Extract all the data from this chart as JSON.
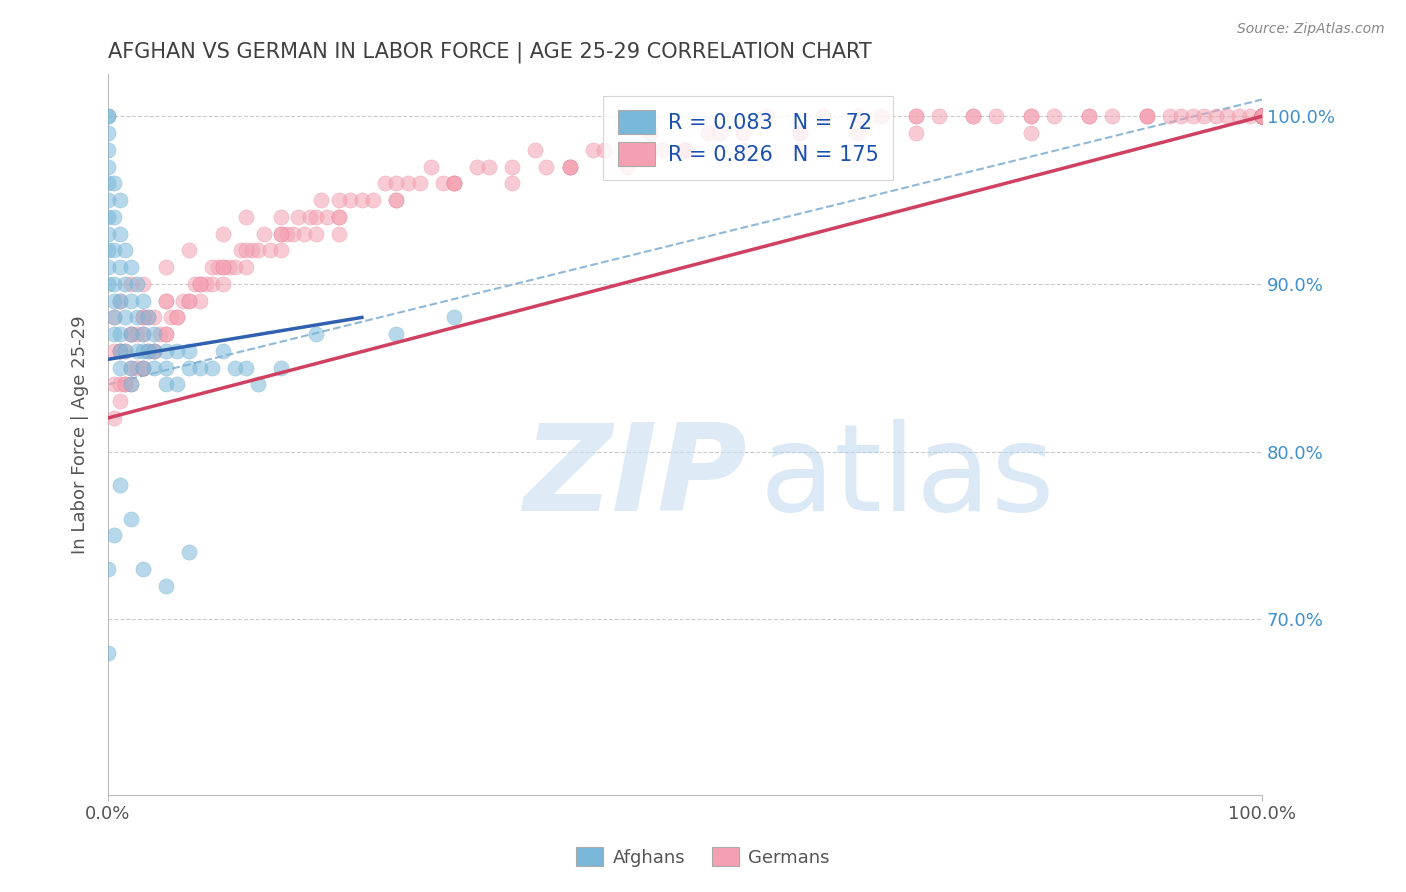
{
  "title": "AFGHAN VS GERMAN IN LABOR FORCE | AGE 25-29 CORRELATION CHART",
  "source": "Source: ZipAtlas.com",
  "ylabel": "In Labor Force | Age 25-29",
  "ytick_labels": [
    "70.0%",
    "80.0%",
    "90.0%",
    "100.0%"
  ],
  "ytick_values": [
    0.7,
    0.8,
    0.9,
    1.0
  ],
  "xmin": 0.0,
  "xmax": 1.0,
  "ymin": 0.595,
  "ymax": 1.025,
  "afghan_color": "#7ab8d9",
  "afghan_edge_color": "#5a9ec0",
  "german_color": "#f4a0b0",
  "german_edge_color": "#e07890",
  "afghan_line_color": "#3060b0",
  "german_line_color": "#d04060",
  "dash_line_color": "#90b8d8",
  "legend_text_color": "#1a50b0",
  "title_color": "#404040",
  "background_color": "#ffffff",
  "gridline_color": "#cccccc",
  "right_tick_color": "#4090cc",
  "scatter_alpha": 0.55,
  "scatter_size": 120,
  "afghan_R": 0.083,
  "afghan_N": 72,
  "german_R": 0.826,
  "german_N": 175,
  "afghan_line_x": [
    0.0,
    0.22
  ],
  "afghan_line_y": [
    0.855,
    0.88
  ],
  "german_line_x": [
    0.0,
    1.0
  ],
  "german_line_y": [
    0.82,
    1.0
  ],
  "dash_line_x": [
    0.0,
    1.0
  ],
  "dash_line_y": [
    0.84,
    1.01
  ],
  "afghan_pts_x": [
    0.0,
    0.0,
    0.0,
    0.0,
    0.0,
    0.0,
    0.0,
    0.0,
    0.0,
    0.0,
    0.0,
    0.0,
    0.005,
    0.005,
    0.005,
    0.005,
    0.005,
    0.005,
    0.005,
    0.01,
    0.01,
    0.01,
    0.01,
    0.01,
    0.01,
    0.01,
    0.015,
    0.015,
    0.015,
    0.015,
    0.02,
    0.02,
    0.02,
    0.02,
    0.02,
    0.025,
    0.025,
    0.025,
    0.03,
    0.03,
    0.03,
    0.03,
    0.035,
    0.035,
    0.04,
    0.04,
    0.04,
    0.05,
    0.05,
    0.05,
    0.06,
    0.06,
    0.07,
    0.07,
    0.08,
    0.09,
    0.1,
    0.11,
    0.12,
    0.13,
    0.15,
    0.18,
    0.25,
    0.3,
    0.0,
    0.0,
    0.005,
    0.01,
    0.02,
    0.03,
    0.05,
    0.07
  ],
  "afghan_pts_y": [
    1.0,
    1.0,
    0.99,
    0.98,
    0.97,
    0.96,
    0.95,
    0.94,
    0.93,
    0.92,
    0.91,
    0.9,
    0.96,
    0.94,
    0.92,
    0.9,
    0.89,
    0.88,
    0.87,
    0.95,
    0.93,
    0.91,
    0.89,
    0.87,
    0.86,
    0.85,
    0.92,
    0.9,
    0.88,
    0.86,
    0.91,
    0.89,
    0.87,
    0.85,
    0.84,
    0.9,
    0.88,
    0.86,
    0.89,
    0.87,
    0.86,
    0.85,
    0.88,
    0.86,
    0.87,
    0.86,
    0.85,
    0.86,
    0.85,
    0.84,
    0.86,
    0.84,
    0.86,
    0.85,
    0.85,
    0.85,
    0.86,
    0.85,
    0.85,
    0.84,
    0.85,
    0.87,
    0.87,
    0.88,
    0.73,
    0.68,
    0.75,
    0.78,
    0.76,
    0.73,
    0.72,
    0.74
  ],
  "german_pts_x": [
    0.005,
    0.005,
    0.01,
    0.01,
    0.015,
    0.015,
    0.02,
    0.02,
    0.025,
    0.025,
    0.03,
    0.03,
    0.03,
    0.035,
    0.035,
    0.04,
    0.04,
    0.045,
    0.05,
    0.05,
    0.055,
    0.06,
    0.065,
    0.07,
    0.075,
    0.08,
    0.085,
    0.09,
    0.095,
    0.1,
    0.105,
    0.11,
    0.115,
    0.12,
    0.125,
    0.13,
    0.135,
    0.14,
    0.15,
    0.155,
    0.16,
    0.165,
    0.17,
    0.175,
    0.18,
    0.185,
    0.19,
    0.2,
    0.21,
    0.22,
    0.23,
    0.24,
    0.25,
    0.26,
    0.27,
    0.28,
    0.29,
    0.3,
    0.32,
    0.33,
    0.35,
    0.37,
    0.38,
    0.4,
    0.42,
    0.43,
    0.45,
    0.47,
    0.48,
    0.5,
    0.52,
    0.53,
    0.55,
    0.57,
    0.6,
    0.62,
    0.65,
    0.67,
    0.7,
    0.72,
    0.75,
    0.77,
    0.8,
    0.82,
    0.85,
    0.87,
    0.9,
    0.92,
    0.93,
    0.94,
    0.95,
    0.96,
    0.97,
    0.98,
    0.99,
    1.0,
    1.0,
    1.0,
    1.0,
    1.0,
    1.0,
    1.0,
    1.0,
    1.0,
    1.0,
    1.0,
    1.0,
    1.0,
    1.0,
    1.0,
    1.0,
    1.0,
    1.0,
    1.0,
    1.0,
    1.0,
    1.0,
    1.0,
    1.0,
    1.0,
    0.005,
    0.01,
    0.015,
    0.02,
    0.03,
    0.04,
    0.05,
    0.06,
    0.07,
    0.08,
    0.09,
    0.1,
    0.12,
    0.15,
    0.18,
    0.2,
    0.25,
    0.3,
    0.35,
    0.4,
    0.45,
    0.5,
    0.55,
    0.6,
    0.65,
    0.7,
    0.75,
    0.8,
    0.85,
    0.9,
    0.005,
    0.01,
    0.02,
    0.03,
    0.05,
    0.07,
    0.1,
    0.12,
    0.15,
    0.2,
    0.25,
    0.3,
    0.4,
    0.5,
    0.6,
    0.7,
    0.8,
    0.9,
    0.01,
    0.02,
    0.03,
    0.05,
    0.08,
    0.1,
    0.15,
    0.2
  ],
  "german_pts_y": [
    0.84,
    0.86,
    0.84,
    0.86,
    0.84,
    0.86,
    0.85,
    0.87,
    0.85,
    0.87,
    0.85,
    0.87,
    0.88,
    0.86,
    0.88,
    0.86,
    0.88,
    0.87,
    0.87,
    0.89,
    0.88,
    0.88,
    0.89,
    0.89,
    0.9,
    0.89,
    0.9,
    0.9,
    0.91,
    0.9,
    0.91,
    0.91,
    0.92,
    0.91,
    0.92,
    0.92,
    0.93,
    0.92,
    0.93,
    0.93,
    0.93,
    0.94,
    0.93,
    0.94,
    0.94,
    0.95,
    0.94,
    0.94,
    0.95,
    0.95,
    0.95,
    0.96,
    0.95,
    0.96,
    0.96,
    0.97,
    0.96,
    0.96,
    0.97,
    0.97,
    0.97,
    0.98,
    0.97,
    0.97,
    0.98,
    0.98,
    0.98,
    0.99,
    0.98,
    0.98,
    0.99,
    0.99,
    0.99,
    1.0,
    0.99,
    1.0,
    1.0,
    1.0,
    1.0,
    1.0,
    1.0,
    1.0,
    1.0,
    1.0,
    1.0,
    1.0,
    1.0,
    1.0,
    1.0,
    1.0,
    1.0,
    1.0,
    1.0,
    1.0,
    1.0,
    1.0,
    1.0,
    1.0,
    1.0,
    1.0,
    1.0,
    1.0,
    1.0,
    1.0,
    1.0,
    1.0,
    1.0,
    1.0,
    1.0,
    1.0,
    1.0,
    1.0,
    1.0,
    1.0,
    1.0,
    1.0,
    1.0,
    1.0,
    1.0,
    1.0,
    0.82,
    0.83,
    0.84,
    0.84,
    0.85,
    0.86,
    0.87,
    0.88,
    0.89,
    0.9,
    0.91,
    0.91,
    0.92,
    0.93,
    0.93,
    0.94,
    0.95,
    0.96,
    0.96,
    0.97,
    0.97,
    0.98,
    0.98,
    0.99,
    0.99,
    1.0,
    1.0,
    1.0,
    1.0,
    1.0,
    0.88,
    0.89,
    0.9,
    0.9,
    0.91,
    0.92,
    0.93,
    0.94,
    0.94,
    0.95,
    0.96,
    0.96,
    0.97,
    0.98,
    0.98,
    0.99,
    0.99,
    1.0,
    0.86,
    0.87,
    0.88,
    0.89,
    0.9,
    0.91,
    0.92,
    0.93
  ]
}
